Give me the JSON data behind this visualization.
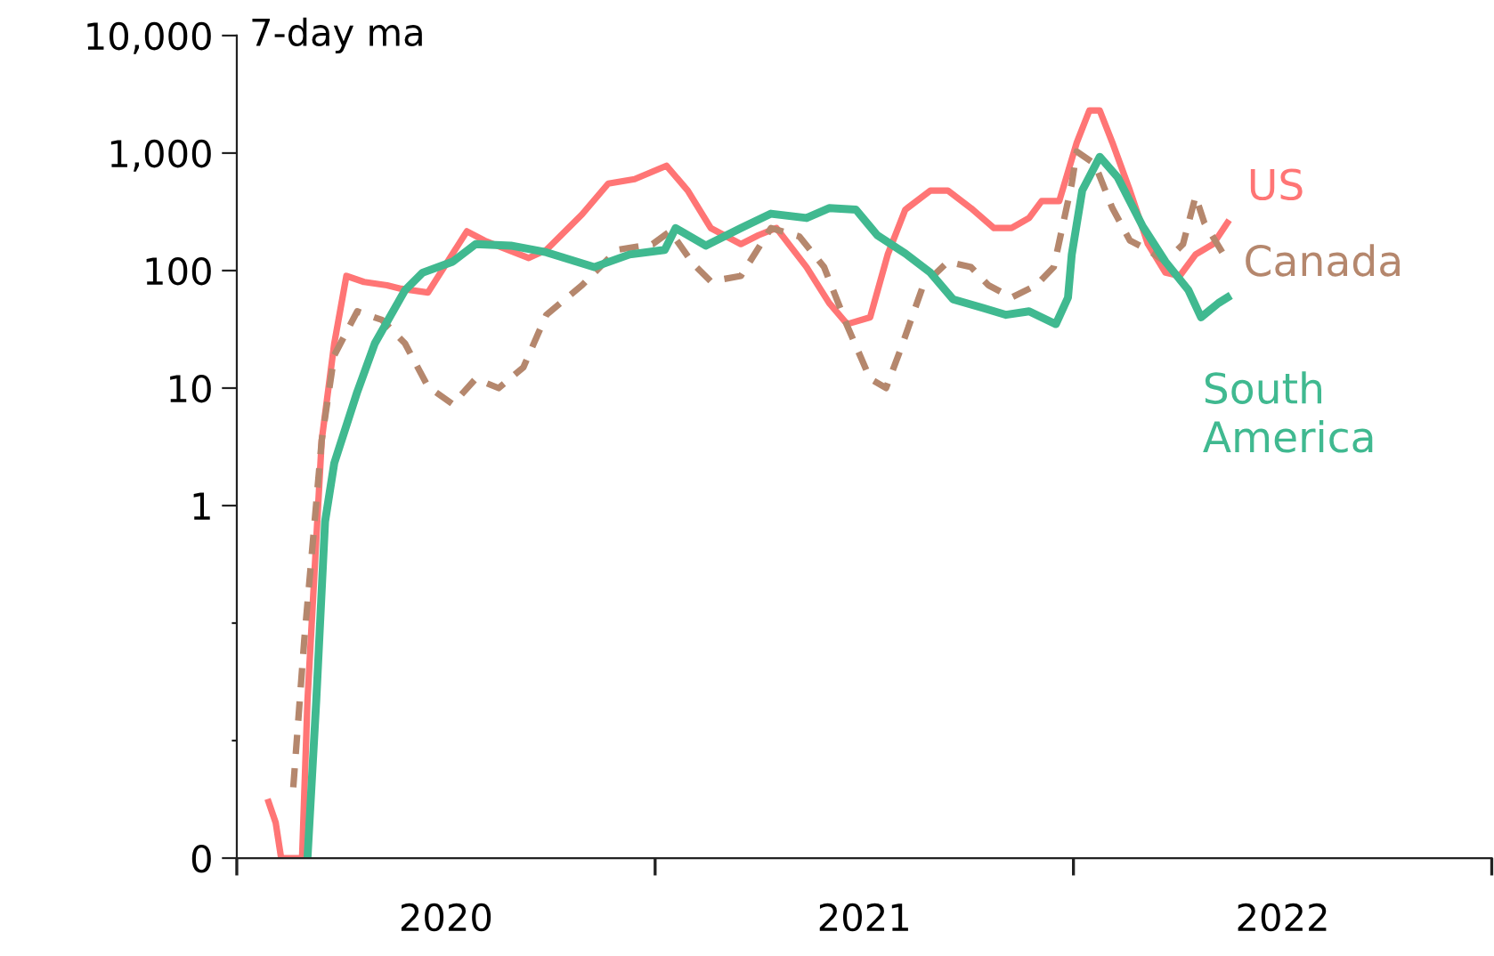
{
  "chart_data": {
    "type": "line",
    "ylabel": "7-day ma",
    "log": "y",
    "grid": false,
    "legend": false,
    "xlim": [
      2020,
      2023
    ],
    "xticks": [
      {
        "value": 2020,
        "label": null
      },
      {
        "value": 2020.5,
        "label": "2020"
      },
      {
        "value": 2021,
        "label": null
      },
      {
        "value": 2021.5,
        "label": "2021"
      },
      {
        "value": 2022,
        "label": null
      },
      {
        "value": 2022.5,
        "label": "2022"
      },
      {
        "value": 2023,
        "label": null
      }
    ],
    "ylim": [
      0.001,
      10000
    ],
    "yticks": [
      {
        "value": 0.001,
        "label": "0"
      },
      {
        "value": 0.01,
        "label": null
      },
      {
        "value": 0.1,
        "label": null
      },
      1,
      10,
      100,
      {
        "value": 1000,
        "label": "1,000"
      },
      {
        "value": 10000,
        "label": "10,000"
      }
    ],
    "series": [
      {
        "name": "US",
        "color": "#ff7575",
        "line_style": "solid",
        "x": [
          2020.076,
          2020.093,
          2020.106,
          2020.156,
          2020.169,
          2020.203,
          2020.233,
          2020.262,
          2020.304,
          2020.359,
          2020.393,
          2020.457,
          2020.55,
          2020.592,
          2020.698,
          2020.74,
          2020.825,
          2020.888,
          2020.951,
          2021.027,
          2021.078,
          2021.133,
          2021.205,
          2021.247,
          2021.29,
          2021.362,
          2021.416,
          2021.459,
          2021.514,
          2021.556,
          2021.598,
          2021.658,
          2021.7,
          2021.755,
          2021.81,
          2021.852,
          2021.894,
          2021.924,
          2021.966,
          2022.008,
          2022.038,
          2022.063,
          2022.093,
          2022.135,
          2022.178,
          2022.22,
          2022.254,
          2022.292,
          2022.334,
          2022.368
        ],
        "values": [
          0.003,
          0.002,
          0.001,
          0.001,
          0.022,
          3.6,
          24,
          90,
          80,
          75,
          70,
          65,
          216,
          180,
          128,
          150,
          300,
          550,
          600,
          780,
          480,
          230,
          168,
          200,
          230,
          107,
          53,
          35,
          40,
          137,
          330,
          480,
          480,
          340,
          230,
          230,
          280,
          390,
          390,
          1230,
          2300,
          2300,
          1230,
          480,
          168,
          96,
          90,
          137,
          168,
          255
        ]
      },
      {
        "name": "Canada",
        "color": "#b5876d",
        "line_style": "dashed",
        "x": [
          2020.135,
          2020.161,
          2020.203,
          2020.233,
          2020.288,
          2020.347,
          2020.402,
          2020.457,
          2020.516,
          2020.571,
          2020.626,
          2020.685,
          2020.74,
          2020.825,
          2020.909,
          2020.994,
          2021.036,
          2021.091,
          2021.133,
          2021.205,
          2021.277,
          2021.345,
          2021.404,
          2021.459,
          2021.514,
          2021.552,
          2021.586,
          2021.641,
          2021.7,
          2021.755,
          2021.797,
          2021.852,
          2021.911,
          2021.953,
          2021.996,
          2022.008,
          2022.051,
          2022.093,
          2022.135,
          2022.178,
          2022.22,
          2022.262,
          2022.292,
          2022.313,
          2022.359
        ],
        "values": [
          0.004,
          0.07,
          3.6,
          19,
          45,
          38,
          24,
          10.3,
          7.3,
          12,
          10,
          15,
          42,
          75,
          150,
          168,
          216,
          114,
          81,
          90,
          230,
          195,
          107,
          34,
          12,
          10,
          21,
          75,
          119,
          107,
          75,
          59,
          75,
          107,
          550,
          1030,
          810,
          340,
          180,
          150,
          119,
          168,
          430,
          255,
          137
        ]
      },
      {
        "name": "South\nAmerica",
        "color": "#40b990",
        "line_style": "solid",
        "x": [
          2020.169,
          2020.19,
          2020.211,
          2020.233,
          2020.288,
          2020.33,
          2020.402,
          2020.444,
          2020.516,
          2020.571,
          2020.655,
          2020.74,
          2020.854,
          2020.939,
          2021.023,
          2021.049,
          2021.121,
          2021.205,
          2021.277,
          2021.362,
          2021.416,
          2021.48,
          2021.531,
          2021.598,
          2021.658,
          2021.712,
          2021.784,
          2021.839,
          2021.894,
          2021.958,
          2021.987,
          2021.996,
          2022.021,
          2022.063,
          2022.106,
          2022.165,
          2022.22,
          2022.275,
          2022.305,
          2022.347,
          2022.368
        ],
        "values": [
          0.001,
          0.022,
          0.73,
          2.3,
          9.3,
          24,
          68,
          96,
          119,
          168,
          163,
          143,
          107,
          137,
          150,
          230,
          163,
          230,
          305,
          280,
          340,
          330,
          200,
          140,
          96,
          57,
          48,
          42,
          45,
          35,
          59,
          137,
          480,
          930,
          620,
          240,
          119,
          68,
          40,
          53,
          59
        ]
      }
    ]
  }
}
